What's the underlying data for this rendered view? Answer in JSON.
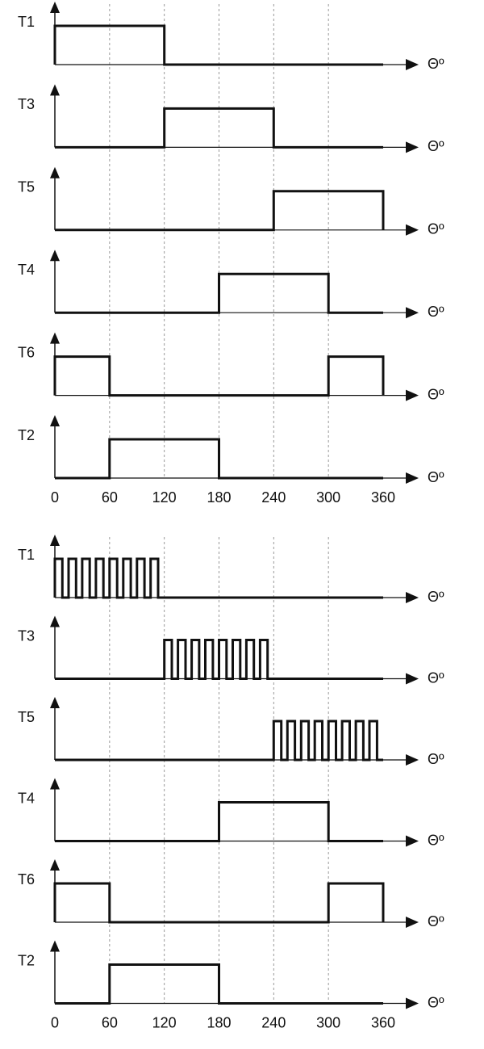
{
  "axis_label": "Θº",
  "x_ticks": [
    0,
    60,
    120,
    180,
    240,
    300,
    360
  ],
  "panels": [
    {
      "signals": [
        {
          "label": "T1",
          "high": [
            [
              0,
              120
            ]
          ]
        },
        {
          "label": "T3",
          "high": [
            [
              120,
              240
            ]
          ]
        },
        {
          "label": "T5",
          "high": [
            [
              240,
              360
            ]
          ]
        },
        {
          "label": "T4",
          "high": [
            [
              180,
              300
            ]
          ]
        },
        {
          "label": "T6",
          "high": [
            [
              0,
              60
            ],
            [
              300,
              360
            ]
          ]
        },
        {
          "label": "T2",
          "high": [
            [
              60,
              180
            ]
          ]
        }
      ]
    },
    {
      "signals": [
        {
          "label": "T1",
          "high": [
            [
              0,
              120
            ]
          ],
          "pulses": 8
        },
        {
          "label": "T3",
          "high": [
            [
              120,
              240
            ]
          ],
          "pulses": 8
        },
        {
          "label": "T5",
          "high": [
            [
              240,
              360
            ]
          ],
          "pulses": 8
        },
        {
          "label": "T4",
          "high": [
            [
              180,
              300
            ]
          ]
        },
        {
          "label": "T6",
          "high": [
            [
              0,
              60
            ],
            [
              300,
              360
            ]
          ]
        },
        {
          "label": "T2",
          "high": [
            [
              60,
              180
            ]
          ]
        }
      ]
    }
  ]
}
